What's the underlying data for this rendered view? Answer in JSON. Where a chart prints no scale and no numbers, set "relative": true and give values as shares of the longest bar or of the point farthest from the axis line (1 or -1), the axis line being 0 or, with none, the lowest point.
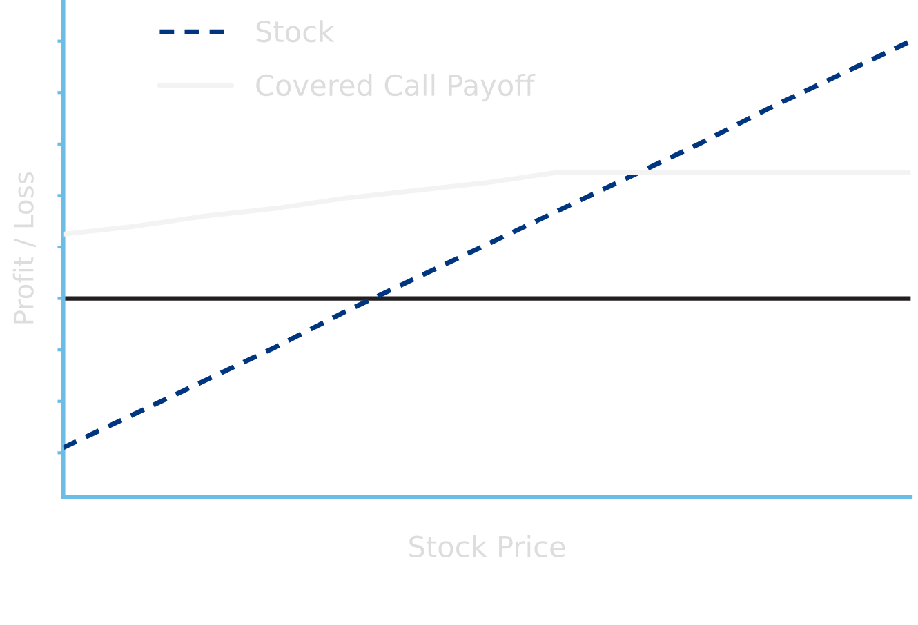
{
  "chart_data": {
    "type": "line",
    "relative": true,
    "xlabel": "Stock Price",
    "ylabel": "Profit / Loss",
    "categories": [
      null,
      null,
      null,
      null,
      null,
      null,
      null,
      null,
      null,
      null,
      null,
      null,
      null
    ],
    "series": [
      {
        "name": "Stock",
        "color": "#003580",
        "line_style": "dashed",
        "values": [
          -0.58,
          -0.45,
          -0.32,
          -0.19,
          -0.05,
          0.08,
          0.21,
          0.34,
          0.47,
          0.6,
          0.74,
          0.87,
          1.0
        ]
      },
      {
        "name": "Covered Call Payoff",
        "color": "#f3f3f3",
        "line_style": "solid",
        "values": [
          0.25,
          0.28,
          0.32,
          0.35,
          0.39,
          0.42,
          0.45,
          0.49,
          0.49,
          0.49,
          0.49,
          0.49,
          0.49
        ]
      }
    ],
    "ref_lines": [
      {
        "axis": "y",
        "value": 0,
        "color": "#231f20"
      }
    ],
    "legend": "top left",
    "tick_labels": false,
    "grid": false
  }
}
